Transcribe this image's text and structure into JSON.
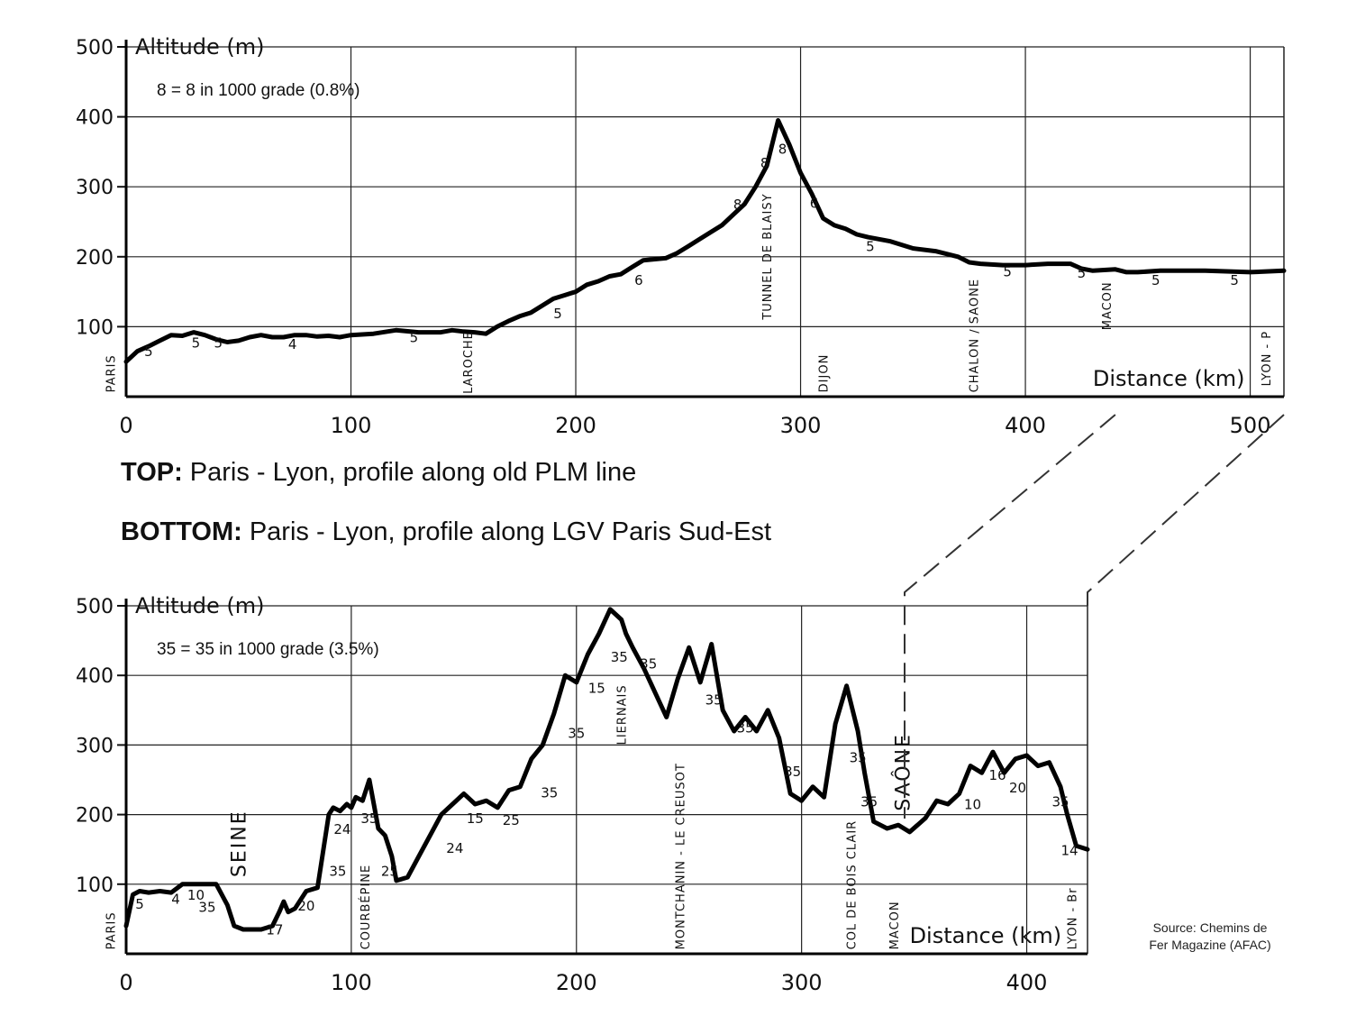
{
  "captions": {
    "top_bold": "TOP:",
    "top_text": " Paris - Lyon, profile along old PLM line",
    "bottom_bold": "BOTTOM:",
    "bottom_text": " Paris - Lyon, profile along LGV Paris Sud-Est"
  },
  "source": {
    "line1": "Source: Chemins de",
    "line2": "Fer Magazine (AFAC)"
  },
  "chart_data": [
    {
      "type": "line",
      "id": "top",
      "ylabel": "Altitude (m)",
      "xlabel": "Distance (km)",
      "note": "8 = 8 in 1000 grade (0.8%)",
      "xlim": [
        0,
        515
      ],
      "ylim": [
        0,
        500
      ],
      "xticks": [
        0,
        100,
        200,
        300,
        400,
        500
      ],
      "yticks": [
        100,
        200,
        300,
        400,
        500
      ],
      "grid": true,
      "series": [
        {
          "x": [
            0,
            5,
            10,
            15,
            20,
            25,
            30,
            35,
            40,
            45,
            50,
            55,
            60,
            65,
            70,
            75,
            80,
            85,
            90,
            95,
            100,
            110,
            120,
            130,
            140,
            145,
            150,
            155,
            160,
            165,
            170,
            175,
            180,
            185,
            190,
            195,
            200,
            205,
            210,
            215,
            220,
            225,
            230,
            240,
            245,
            250,
            255,
            260,
            265,
            270,
            275,
            280,
            285,
            290,
            295,
            300,
            305,
            310,
            315,
            320,
            325,
            330,
            340,
            350,
            360,
            370,
            375,
            380,
            390,
            400,
            410,
            420,
            425,
            430,
            440,
            445,
            450,
            460,
            480,
            500,
            515
          ],
          "y": [
            50,
            65,
            72,
            80,
            88,
            87,
            92,
            88,
            82,
            78,
            80,
            85,
            88,
            85,
            85,
            88,
            88,
            86,
            87,
            85,
            88,
            90,
            95,
            92,
            92,
            95,
            93,
            92,
            90,
            100,
            108,
            115,
            120,
            130,
            140,
            145,
            150,
            160,
            165,
            172,
            175,
            185,
            195,
            198,
            205,
            215,
            225,
            235,
            245,
            260,
            275,
            300,
            330,
            395,
            360,
            320,
            290,
            255,
            245,
            240,
            232,
            228,
            222,
            212,
            208,
            200,
            192,
            190,
            188,
            188,
            190,
            190,
            183,
            180,
            182,
            178,
            178,
            180,
            180,
            178,
            180
          ]
        }
      ],
      "grade_labels": [
        {
          "x": 10,
          "y": 58,
          "text": "5"
        },
        {
          "x": 31,
          "y": 70,
          "text": "5"
        },
        {
          "x": 41,
          "y": 70,
          "text": "5"
        },
        {
          "x": 74,
          "y": 68,
          "text": "4"
        },
        {
          "x": 128,
          "y": 78,
          "text": "5"
        },
        {
          "x": 192,
          "y": 112,
          "text": "5"
        },
        {
          "x": 228,
          "y": 160,
          "text": "6"
        },
        {
          "x": 272,
          "y": 268,
          "text": "8"
        },
        {
          "x": 284,
          "y": 327,
          "text": "8"
        },
        {
          "x": 292,
          "y": 347,
          "text": "8"
        },
        {
          "x": 306,
          "y": 270,
          "text": "6"
        },
        {
          "x": 331,
          "y": 208,
          "text": "5"
        },
        {
          "x": 392,
          "y": 172,
          "text": "5"
        },
        {
          "x": 425,
          "y": 170,
          "text": "5"
        },
        {
          "x": 458,
          "y": 160,
          "text": "5"
        },
        {
          "x": 493,
          "y": 160,
          "text": "5"
        }
      ],
      "place_labels": [
        {
          "x": -5,
          "y": 6,
          "text": "PARIS"
        },
        {
          "x": 154,
          "y": 4,
          "text": "LAROCHE"
        },
        {
          "x": 287,
          "y": 110,
          "text": "TUNNEL DE BLAISY"
        },
        {
          "x": 312,
          "y": 6,
          "text": "DIJON"
        },
        {
          "x": 379,
          "y": 6,
          "text": "CHALON ∕ SAONE"
        },
        {
          "x": 438,
          "y": 95,
          "text": "MACON"
        },
        {
          "x": 509,
          "y": 15,
          "text": "LYON - P"
        }
      ]
    },
    {
      "type": "line",
      "id": "bottom",
      "ylabel": "Altitude (m)",
      "xlabel": "Distance (km)",
      "note": "35 = 35 in 1000 grade (3.5%)",
      "xlim": [
        0,
        427
      ],
      "ylim": [
        0,
        500
      ],
      "xticks": [
        0,
        100,
        200,
        300,
        400
      ],
      "yticks": [
        100,
        200,
        300,
        400,
        500
      ],
      "grid": true,
      "series": [
        {
          "x": [
            0,
            3,
            6,
            10,
            15,
            20,
            25,
            30,
            35,
            40,
            45,
            48,
            52,
            55,
            60,
            65,
            68,
            70,
            72,
            75,
            78,
            80,
            85,
            90,
            92,
            95,
            98,
            100,
            102,
            105,
            108,
            110,
            112,
            115,
            118,
            120,
            125,
            130,
            135,
            140,
            145,
            150,
            155,
            160,
            165,
            170,
            175,
            180,
            185,
            190,
            195,
            200,
            205,
            210,
            215,
            220,
            222,
            225,
            230,
            235,
            240,
            245,
            250,
            255,
            260,
            265,
            270,
            275,
            280,
            285,
            290,
            295,
            300,
            305,
            310,
            315,
            320,
            325,
            328,
            332,
            338,
            343,
            348,
            355,
            360,
            365,
            370,
            375,
            380,
            385,
            390,
            395,
            400,
            405,
            410,
            415,
            418,
            422,
            427
          ],
          "y": [
            40,
            85,
            90,
            88,
            90,
            88,
            100,
            100,
            100,
            100,
            70,
            40,
            35,
            35,
            35,
            40,
            60,
            75,
            60,
            65,
            80,
            90,
            95,
            200,
            210,
            205,
            215,
            210,
            225,
            220,
            250,
            215,
            180,
            170,
            140,
            105,
            110,
            140,
            170,
            200,
            215,
            230,
            215,
            220,
            210,
            235,
            240,
            280,
            300,
            345,
            400,
            390,
            430,
            460,
            495,
            480,
            460,
            440,
            410,
            375,
            340,
            395,
            440,
            390,
            445,
            350,
            320,
            340,
            320,
            350,
            310,
            230,
            220,
            240,
            225,
            330,
            385,
            320,
            260,
            190,
            180,
            185,
            175,
            195,
            220,
            215,
            230,
            270,
            260,
            290,
            260,
            280,
            285,
            270,
            275,
            240,
            200,
            155,
            150
          ]
        }
      ],
      "grade_labels": [
        {
          "x": 6,
          "y": 65,
          "text": "5"
        },
        {
          "x": 22,
          "y": 72,
          "text": "4"
        },
        {
          "x": 31,
          "y": 78,
          "text": "10"
        },
        {
          "x": 36,
          "y": 60,
          "text": "35"
        },
        {
          "x": 66,
          "y": 28,
          "text": "17"
        },
        {
          "x": 80,
          "y": 62,
          "text": "20"
        },
        {
          "x": 96,
          "y": 172,
          "text": "24"
        },
        {
          "x": 94,
          "y": 112,
          "text": "35"
        },
        {
          "x": 108,
          "y": 188,
          "text": "35"
        },
        {
          "x": 117,
          "y": 112,
          "text": "25"
        },
        {
          "x": 146,
          "y": 145,
          "text": "24"
        },
        {
          "x": 155,
          "y": 188,
          "text": "15"
        },
        {
          "x": 171,
          "y": 185,
          "text": "25"
        },
        {
          "x": 188,
          "y": 225,
          "text": "35"
        },
        {
          "x": 200,
          "y": 310,
          "text": "35"
        },
        {
          "x": 209,
          "y": 375,
          "text": "15"
        },
        {
          "x": 219,
          "y": 420,
          "text": "35"
        },
        {
          "x": 232,
          "y": 410,
          "text": "35"
        },
        {
          "x": 261,
          "y": 358,
          "text": "35"
        },
        {
          "x": 275,
          "y": 318,
          "text": "35"
        },
        {
          "x": 296,
          "y": 255,
          "text": "35"
        },
        {
          "x": 325,
          "y": 275,
          "text": "35"
        },
        {
          "x": 330,
          "y": 212,
          "text": "35"
        },
        {
          "x": 376,
          "y": 208,
          "text": "10"
        },
        {
          "x": 387,
          "y": 250,
          "text": "16"
        },
        {
          "x": 396,
          "y": 232,
          "text": "20"
        },
        {
          "x": 415,
          "y": 212,
          "text": "35"
        },
        {
          "x": 419,
          "y": 142,
          "text": "14"
        }
      ],
      "place_labels": [
        {
          "x": -5,
          "y": 6,
          "text": "PARIS"
        },
        {
          "x": 53,
          "y": 110,
          "text": "SEINE"
        },
        {
          "x": 108,
          "y": 6,
          "text": "COURBÉPINE"
        },
        {
          "x": 222,
          "y": 300,
          "text": "LIERNAIS"
        },
        {
          "x": 248,
          "y": 6,
          "text": "MONTCHANIN - LE CREUSOT"
        },
        {
          "x": 324,
          "y": 6,
          "text": "COL DE BOIS CLAIR"
        },
        {
          "x": 343,
          "y": 6,
          "text": "MACON"
        },
        {
          "x": 348,
          "y": 205,
          "text": "SAÔNE"
        },
        {
          "x": 422,
          "y": 6,
          "text": "LYON - Br"
        }
      ]
    }
  ]
}
